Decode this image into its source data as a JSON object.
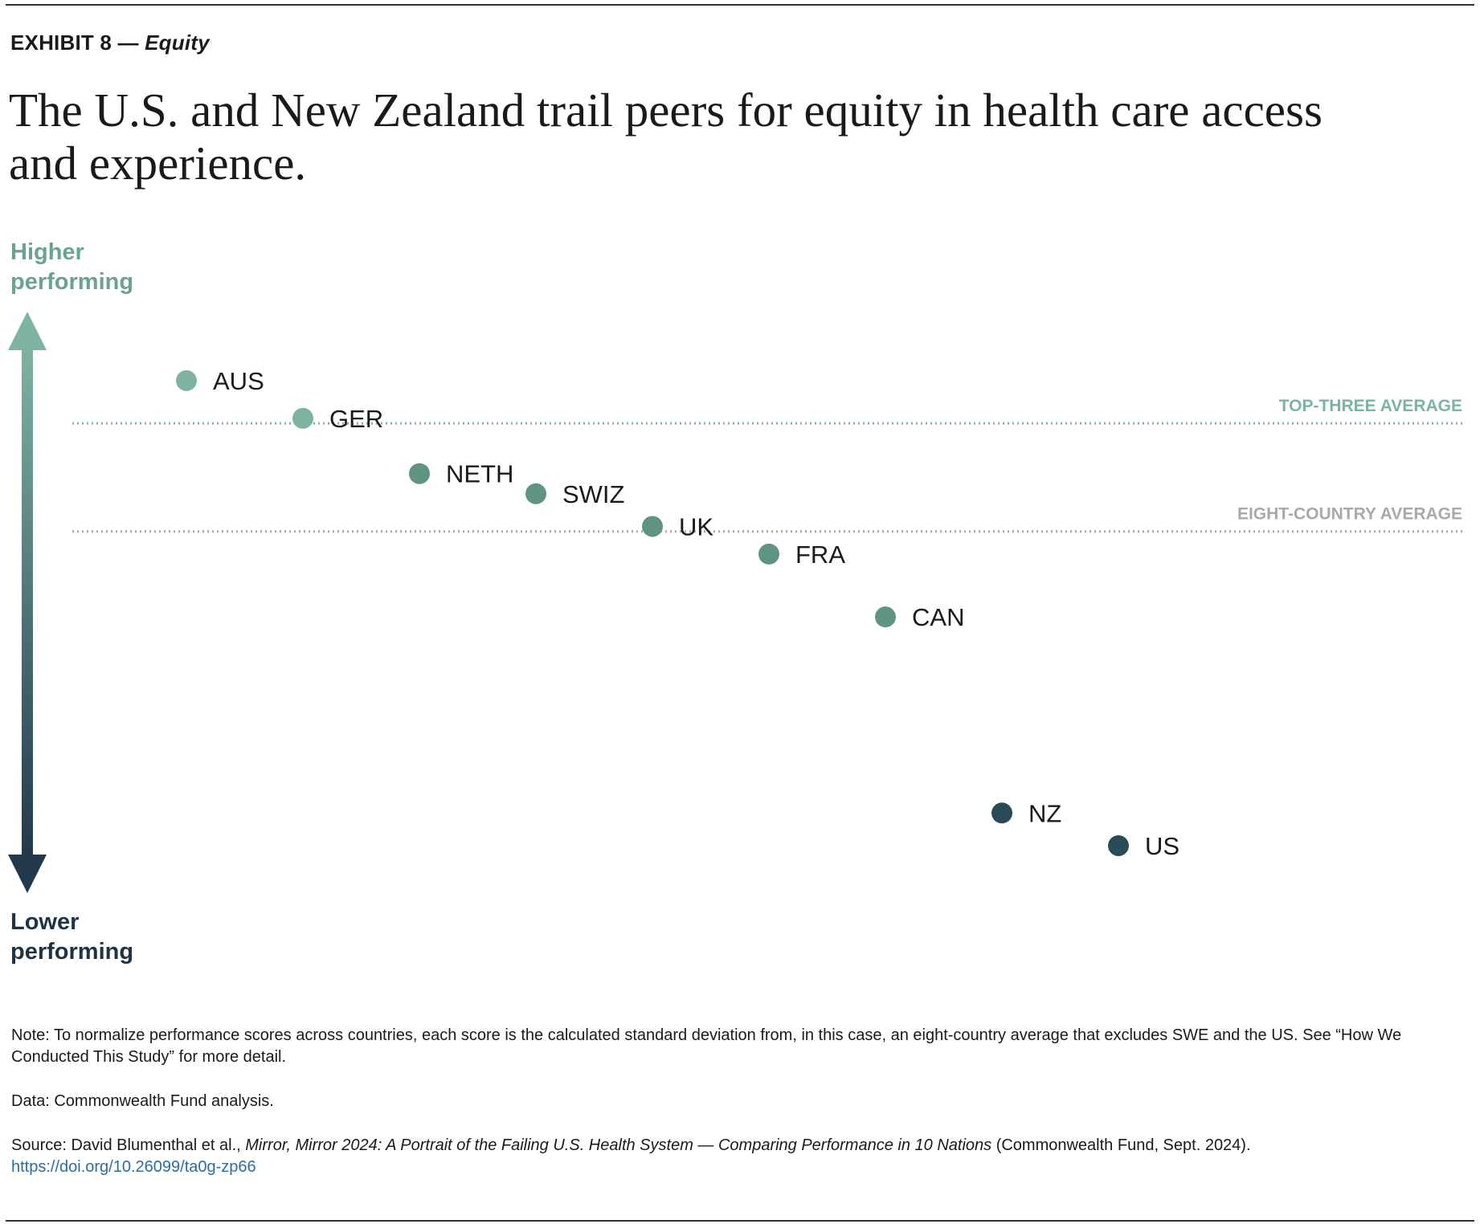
{
  "exhibit": {
    "label": "EXHIBIT 8 — ",
    "topic": "Equity"
  },
  "headline": "The U.S. and New Zealand trail peers for equity in health care access and experience.",
  "axis": {
    "high_label_1": "Higher",
    "high_label_2": "performing",
    "low_label_1": "Lower",
    "low_label_2": "performing"
  },
  "colors": {
    "high": "#7eb3a3",
    "mid": "#5f9484",
    "low": "#2a4a58",
    "arrow_low": "#22384b",
    "ref_top": "#7ab5a3",
    "ref_avg": "#a9a9a9"
  },
  "chart_data": {
    "type": "scatter",
    "title": "The U.S. and New Zealand trail peers for equity in health care access and experience.",
    "xlabel": "",
    "ylabel": "",
    "y_direction_labels": {
      "top": "Higher performing",
      "bottom": "Lower performing"
    },
    "grid": false,
    "points": [
      {
        "label": "AUS",
        "rank": 1,
        "value": 0.6
      },
      {
        "label": "GER",
        "rank": 2,
        "value": 0.45
      },
      {
        "label": "NETH",
        "rank": 3,
        "value": 0.23
      },
      {
        "label": "SWIZ",
        "rank": 4,
        "value": 0.15
      },
      {
        "label": "UK",
        "rank": 5,
        "value": 0.02
      },
      {
        "label": "FRA",
        "rank": 6,
        "value": -0.09
      },
      {
        "label": "CAN",
        "rank": 7,
        "value": -0.34
      },
      {
        "label": "NZ",
        "rank": 8,
        "value": -1.12
      },
      {
        "label": "US",
        "rank": 9,
        "value": -1.25
      }
    ],
    "reference_lines": [
      {
        "label": "TOP-THREE AVERAGE",
        "value": 0.43
      },
      {
        "label": "EIGHT-COUNTRY AVERAGE",
        "value": 0.0
      }
    ],
    "ylim": [
      -1.56,
      0.9
    ]
  },
  "notes": {
    "note": "Note: To normalize performance scores across countries, each score is the calculated standard deviation from, in this case, an eight-country average that excludes SWE and the US. See “How We Conducted This Study” for more detail.",
    "data": "Data: Commonwealth Fund analysis.",
    "source_prefix": "Source: David Blumenthal et al., ",
    "source_title": "Mirror, Mirror 2024: A Portrait of the Failing U.S. Health System — Comparing Performance in 10 Nations",
    "source_suffix": " (Commonwealth Fund, Sept. 2024).",
    "link": "https://doi.org/10.26099/ta0g-zp66"
  }
}
